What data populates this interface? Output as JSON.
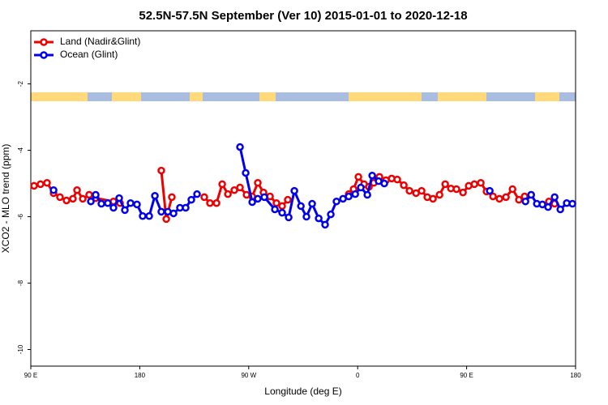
{
  "chart_data": {
    "type": "line",
    "title": "52.5N-57.5N September (Ver 10)   2015-01-01 to 2020-12-18",
    "x_label": "Longitude (deg E)",
    "y_label": "XCO2 - MLO trend (ppm)",
    "xlim": [
      90,
      540
    ],
    "xticks": [
      {
        "value": 90,
        "label": "90 E"
      },
      {
        "value": 180,
        "label": "180"
      },
      {
        "value": 270,
        "label": "90 W"
      },
      {
        "value": 360,
        "label": "0"
      },
      {
        "value": 450,
        "label": "90 E"
      },
      {
        "value": 540,
        "label": "180"
      }
    ],
    "ylim": [
      -10.5,
      -0.4
    ],
    "yticks": [
      -2,
      -4,
      -6,
      -8,
      -10
    ],
    "legend": "top-left",
    "series": [
      {
        "name": "Land (Nadir&Glint)",
        "color": "#ee0000",
        "x": [
          92.7,
          98.0,
          103.4,
          108.8,
          114.1,
          119.5,
          124.8,
          128.2,
          132.9,
          138.2,
          143.6,
          158.3,
          163.7,
          null,
          197.8,
          201.9,
          206.5,
          null,
          233.3,
          238.0,
          243.4,
          248.1,
          252.8,
          258.1,
          262.8,
          268.2,
          272.9,
          277.5,
          282.2,
          287.6,
          292.9,
          297.6,
          302.3,
          null,
          352.6,
          356.6,
          360.6,
          365.3,
          369.3,
          373.3,
          378.0,
          383.4,
          388.1,
          392.7,
          398.1,
          402.8,
          408.2,
          412.8,
          417.5,
          422.2,
          427.6,
          432.3,
          437.0,
          441.6,
          447.0,
          451.7,
          456.4,
          461.7,
          466.4,
          471.8,
          477.1,
          482.5,
          487.9,
          493.2,
          497.9,
          503.3,
          null,
          518.0,
          522.7
        ],
        "values": [
          -5.07,
          -5.02,
          -4.98,
          -5.29,
          -5.41,
          -5.51,
          -5.46,
          -5.2,
          -5.46,
          -5.34,
          -5.44,
          -5.54,
          -5.59,
          null,
          -4.61,
          -6.07,
          -5.41,
          null,
          -5.41,
          -5.59,
          -5.59,
          -5.02,
          -5.32,
          -5.2,
          -5.12,
          -5.34,
          -5.39,
          -4.98,
          -5.27,
          -5.39,
          -5.59,
          -5.68,
          -5.49,
          null,
          -5.32,
          -5.17,
          -4.8,
          -5.02,
          -5.1,
          -4.98,
          -4.8,
          -4.9,
          -4.85,
          -4.88,
          -5.05,
          -5.22,
          -5.29,
          -5.22,
          -5.41,
          -5.46,
          -5.34,
          -5.02,
          -5.15,
          -5.17,
          -5.27,
          -5.07,
          -5.02,
          -4.98,
          -5.24,
          -5.39,
          -5.46,
          -5.41,
          -5.17,
          -5.49,
          -5.39,
          -5.34,
          null,
          -5.54,
          -5.61
        ]
      },
      {
        "name": "Ocean (Glint)",
        "color": "#0000ee",
        "x": [
          108.8,
          null,
          139.6,
          143.6,
          148.3,
          153.6,
          158.3,
          163.0,
          167.7,
          172.4,
          177.7,
          182.4,
          187.8,
          192.5,
          197.8,
          203.2,
          207.9,
          213.2,
          217.9,
          222.6,
          227.3,
          null,
          262.8,
          267.5,
          272.9,
          277.5,
          282.9,
          291.6,
          297.6,
          303.0,
          307.7,
          313.1,
          317.7,
          322.4,
          327.8,
          333.1,
          337.8,
          342.5,
          347.9,
          352.6,
          358.0,
          362.6,
          368.0,
          372.0,
          377.3,
          382.0,
          null,
          469.1,
          null,
          498.6,
          503.3,
          508.0,
          512.6,
          517.3,
          522.7,
          527.4,
          532.7,
          537.4
        ],
        "values": [
          -5.2,
          null,
          -5.54,
          -5.34,
          -5.61,
          -5.59,
          -5.73,
          -5.44,
          -5.8,
          -5.59,
          -5.63,
          -5.98,
          -5.98,
          -5.37,
          -5.85,
          -5.85,
          -5.9,
          -5.73,
          -5.73,
          -5.49,
          -5.32,
          null,
          -3.9,
          -4.68,
          -5.56,
          -5.46,
          -5.41,
          -5.78,
          -5.88,
          -6.02,
          -5.22,
          -5.68,
          -6.0,
          -5.61,
          -6.05,
          -6.24,
          -5.93,
          -5.54,
          -5.46,
          -5.39,
          -5.32,
          -5.12,
          -5.34,
          -4.76,
          -4.93,
          -5.0,
          null,
          -5.22,
          null,
          -5.54,
          -5.34,
          -5.61,
          -5.63,
          -5.71,
          -5.41,
          -5.78,
          -5.59,
          -5.61
        ]
      }
    ]
  }
}
